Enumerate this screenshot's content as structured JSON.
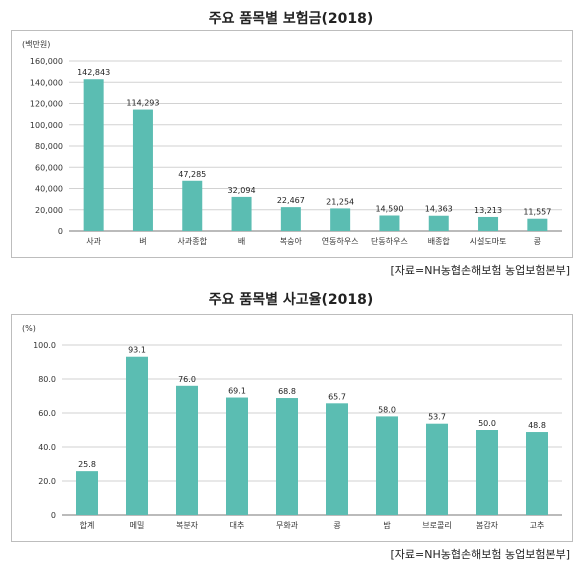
{
  "charts": [
    {
      "title": "주요 품목별 보험금(2018)",
      "unit": "(백만원)",
      "source": "[자료=NH농협손해보험 농업보험본부]",
      "color": "#5bbdb2"
    },
    {
      "title": "주요 품목별 사고율(2018)",
      "unit": "(%)",
      "source": "[자료=NH농협손해보험 농업보험본부]",
      "color": "#5bbdb2"
    }
  ],
  "chart_data": [
    {
      "type": "bar",
      "title": "주요 품목별 보험금(2018)",
      "ylabel": "(백만원)",
      "categories": [
        "사과",
        "벼",
        "사과종합",
        "배",
        "복숭아",
        "연동하우스",
        "단동하우스",
        "배종합",
        "시설도마토",
        "콩"
      ],
      "values": [
        142843,
        114293,
        47285,
        32094,
        22467,
        21254,
        14590,
        14363,
        13213,
        11557
      ],
      "value_labels": [
        "142,843",
        "114,293",
        "47,285",
        "32,094",
        "22,467",
        "21,254",
        "14,590",
        "14,363",
        "13,213",
        "11,557"
      ],
      "ylim": [
        0,
        160000
      ],
      "yticks": [
        0,
        20000,
        40000,
        60000,
        80000,
        100000,
        120000,
        140000,
        160000
      ],
      "ytick_labels": [
        "0",
        "20,000",
        "40,000",
        "60,000",
        "80,000",
        "100,000",
        "120,000",
        "140,000",
        "160,000"
      ],
      "grid": true
    },
    {
      "type": "bar",
      "title": "주요 품목별 사고율(2018)",
      "ylabel": "(%)",
      "categories": [
        "합계",
        "메밀",
        "복분자",
        "대추",
        "무화과",
        "콩",
        "밤",
        "브로콜리",
        "봄감자",
        "고추"
      ],
      "values": [
        25.8,
        93.1,
        76.0,
        69.1,
        68.8,
        65.7,
        58.0,
        53.7,
        50.0,
        48.8
      ],
      "value_labels": [
        "25.8",
        "93.1",
        "76.0",
        "69.1",
        "68.8",
        "65.7",
        "58.0",
        "53.7",
        "50.0",
        "48.8"
      ],
      "ylim": [
        0,
        100
      ],
      "yticks": [
        0,
        20,
        40,
        60,
        80,
        100
      ],
      "ytick_labels": [
        "0",
        "20.0",
        "40.0",
        "60.0",
        "80.0",
        "100.0"
      ],
      "grid": true
    }
  ]
}
